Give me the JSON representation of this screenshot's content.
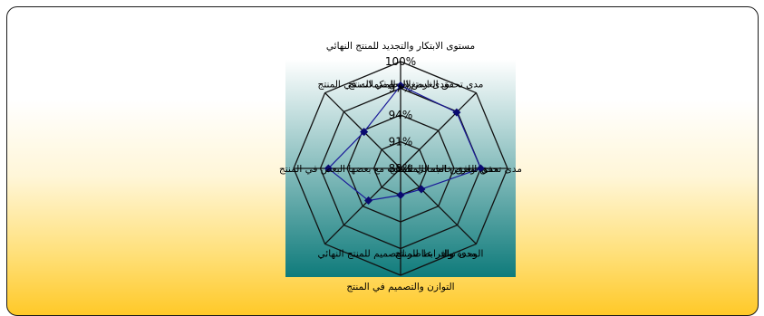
{
  "chart_data": {
    "type": "radar",
    "categories": [
      "مستوى الابتكار والتجديد للمنتج النهائي",
      "مدى تحقق الغرض الوظيفي للمنتج",
      "مدى تحقق الغرض الجمالي للمنتج",
      "الوحدة والترابط للمنتج",
      "التوازن والتصميم في المنتج",
      "مدى توافر عناصر التصميم للمنتج النهائي",
      "مدى توافق خامات المكملات مع بعضها البعض في المنتج",
      "مدى استغلال المكملات في المنتج"
    ],
    "values": [
      97.3,
      96.9,
      97.0,
      91.3,
      91.0,
      93.1,
      96.1,
      93.8
    ],
    "r_ticks": [
      "88%",
      "91%",
      "94%",
      "97%",
      "100%"
    ],
    "rlim": [
      88,
      100
    ],
    "grid": true,
    "series_color": "#1a1a99",
    "marker_color": "#0a0a70",
    "plot_gradient": [
      "#ffffff",
      "#0f7b7b"
    ]
  }
}
